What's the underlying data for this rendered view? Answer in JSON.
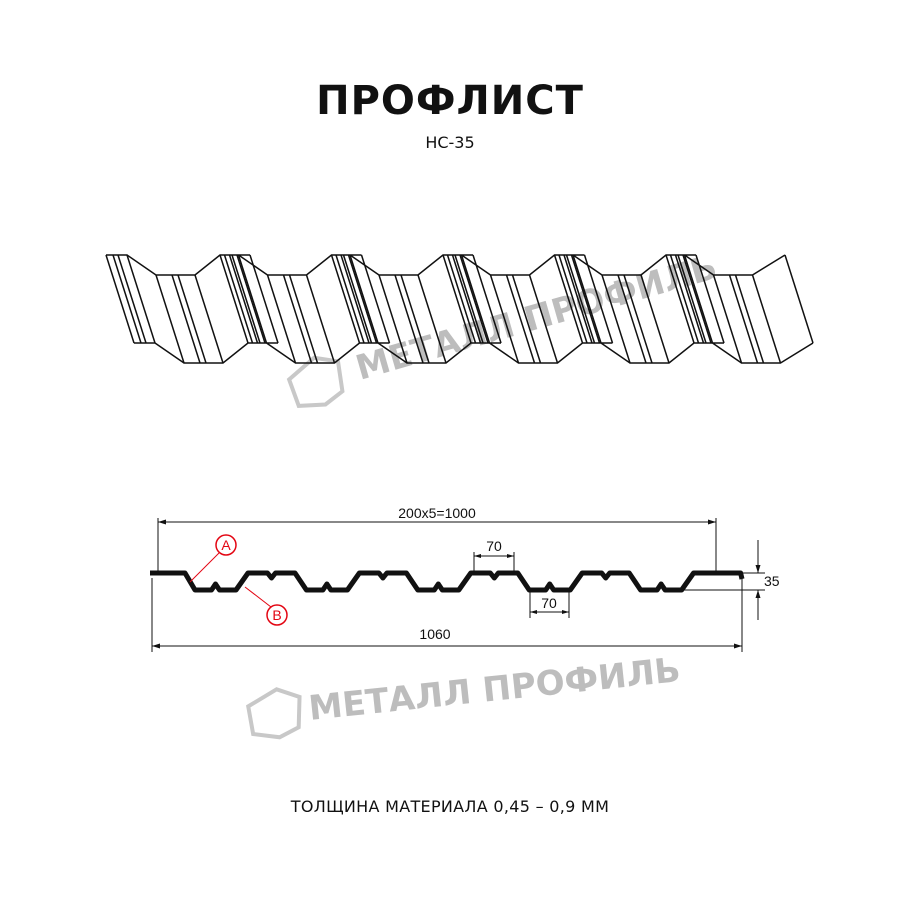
{
  "title": "ПРОФЛИСТ",
  "subtitle": "НС-35",
  "footer": "ТОЛЩИНА МАТЕРИАЛА 0,45 – 0,9 ММ",
  "watermark": "МЕТАЛЛ ПРОФИЛЬ",
  "dimensions": {
    "pitch_total": "200x5=1000",
    "top_width": "70",
    "bottom_width": "70",
    "height": "35",
    "total_width": "1060"
  },
  "markers": {
    "a": "A",
    "b": "B"
  },
  "colors": {
    "profile": "#111111",
    "marker": "#e30613",
    "watermark": "#bdbdbd"
  }
}
